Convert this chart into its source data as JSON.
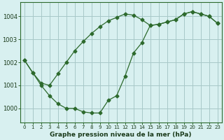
{
  "line1_x": [
    0,
    1,
    2,
    3,
    4,
    5,
    6,
    7,
    8,
    9,
    10,
    11,
    12,
    13,
    14,
    15,
    16,
    17,
    18,
    19,
    20,
    21,
    22,
    23
  ],
  "line1_y": [
    1002.1,
    1001.55,
    1001.1,
    1001.0,
    1001.5,
    1002.0,
    1002.5,
    1002.9,
    1003.25,
    1003.55,
    1003.8,
    1003.95,
    1004.1,
    1004.05,
    1003.85,
    1003.6,
    1003.65,
    1003.75,
    1003.85,
    1004.1,
    1004.2,
    1004.1,
    1004.0,
    1003.7
  ],
  "line2_x": [
    0,
    1,
    2,
    3,
    4,
    5,
    6,
    7,
    8,
    9,
    10,
    11,
    12,
    13,
    14,
    15,
    16,
    17,
    18,
    19,
    20,
    21,
    22,
    23
  ],
  "line2_y": [
    1002.1,
    1001.55,
    1001.0,
    1000.55,
    1000.2,
    1000.0,
    1000.0,
    999.85,
    999.8,
    999.8,
    1000.35,
    1000.55,
    1001.4,
    1002.4,
    1002.85,
    1003.6,
    1003.65,
    1003.75,
    1003.85,
    1004.1,
    1004.2,
    1004.1,
    1004.0,
    1003.7
  ],
  "line_color": "#2d6a2d",
  "bg_color": "#d8f0f0",
  "grid_color": "#a8c8c8",
  "xlabel": "Graphe pression niveau de la mer (hPa)",
  "xlim": [
    -0.5,
    23.5
  ],
  "ylim": [
    999.4,
    1004.6
  ],
  "yticks": [
    1000,
    1001,
    1002,
    1003,
    1004
  ],
  "xticks": [
    0,
    1,
    2,
    3,
    4,
    5,
    6,
    7,
    8,
    9,
    10,
    11,
    12,
    13,
    14,
    15,
    16,
    17,
    18,
    19,
    20,
    21,
    22,
    23
  ]
}
